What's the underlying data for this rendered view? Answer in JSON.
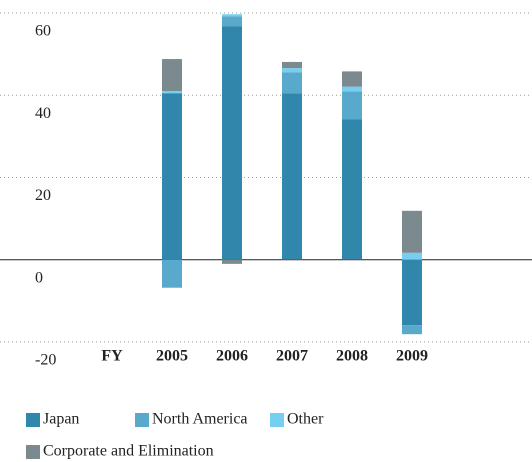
{
  "chart_data": {
    "type": "bar",
    "stacked": true,
    "x_label": "FY",
    "categories": [
      "2005",
      "2006",
      "2007",
      "2008",
      "2009"
    ],
    "series": [
      {
        "name": "Japan",
        "color": "#3186ac",
        "values": [
          40.5,
          56.8,
          40.5,
          34.1,
          -15.9
        ]
      },
      {
        "name": "North America",
        "color": "#58a9cb",
        "values": [
          -6.8,
          2.4,
          5.1,
          6.8,
          -2.2
        ]
      },
      {
        "name": "Other",
        "color": "#76cff0",
        "values": [
          0.5,
          0.5,
          1,
          1.2,
          1.7
        ]
      },
      {
        "name": "Corporate and Elimination",
        "color": "#7b8a8e",
        "values": [
          7.8,
          -1,
          1.5,
          3.7,
          10.2
        ]
      }
    ],
    "ylim": [
      -20,
      60
    ],
    "yticks": [
      -20,
      0,
      20,
      40,
      60
    ],
    "grid": true
  }
}
